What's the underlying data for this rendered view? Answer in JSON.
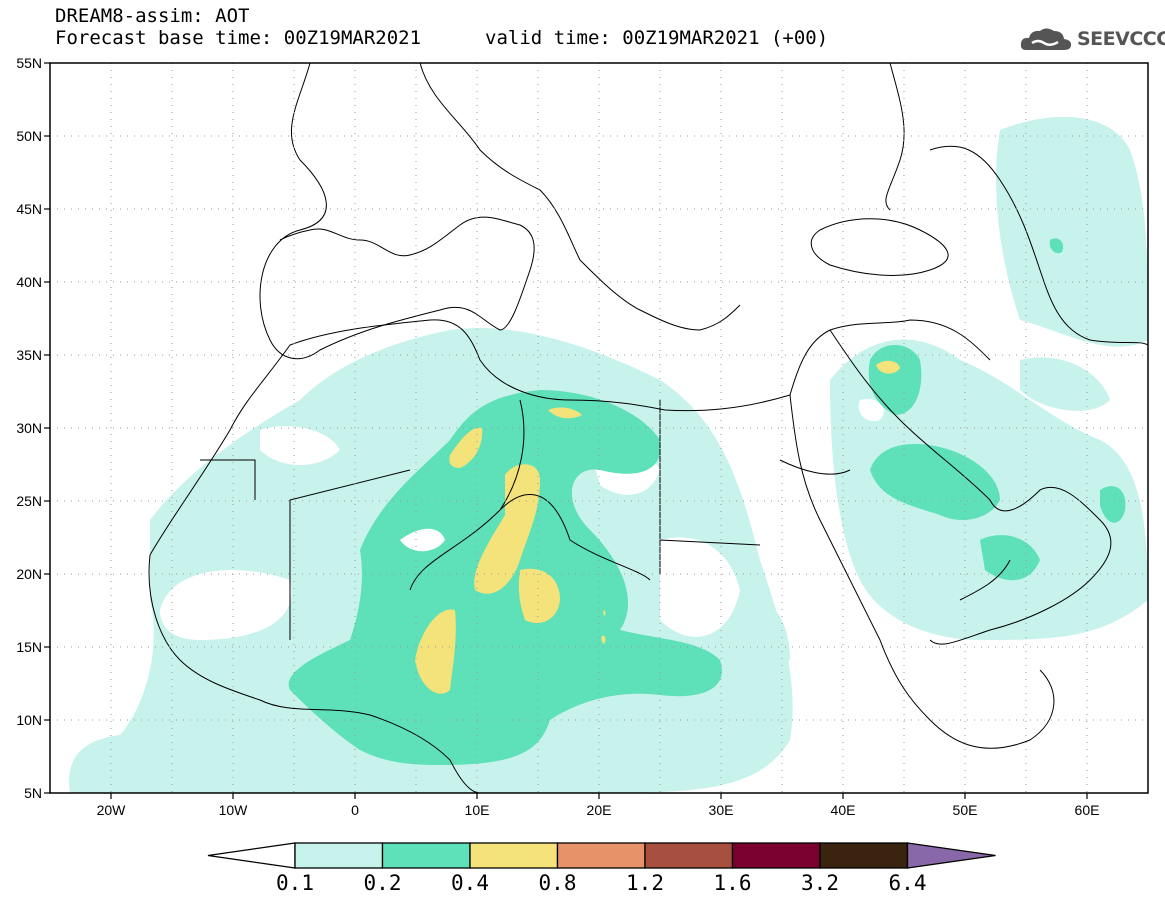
{
  "title": {
    "line1": "DREAM8-assim: AOT",
    "line2": "Forecast base time: 00Z19MAR2021",
    "line2b": "valid time: 00Z19MAR2021 (+00)"
  },
  "logo": {
    "text": "SEEVCCC",
    "icon": "cloud-logo-icon"
  },
  "map": {
    "lat_labels": [
      "55N",
      "50N",
      "45N",
      "40N",
      "35N",
      "30N",
      "25N",
      "20N",
      "15N",
      "10N",
      "5N"
    ],
    "lon_labels": [
      "20W",
      "10W",
      "0",
      "10E",
      "20E",
      "30E",
      "40E",
      "50E",
      "60E"
    ],
    "lat_range": [
      5,
      55
    ],
    "lon_range": [
      -25,
      65
    ],
    "grid": "dotted"
  },
  "colorbar": {
    "tick_labels": [
      "0.1",
      "0.2",
      "0.4",
      "0.8",
      "1.2",
      "1.6",
      "3.2",
      "6.4"
    ],
    "colors": [
      "#c8f2ec",
      "#5ee0b8",
      "#f3e37a",
      "#e8926a",
      "#a85040",
      "#7a0030",
      "#3a2410",
      "#8868a8"
    ]
  }
}
